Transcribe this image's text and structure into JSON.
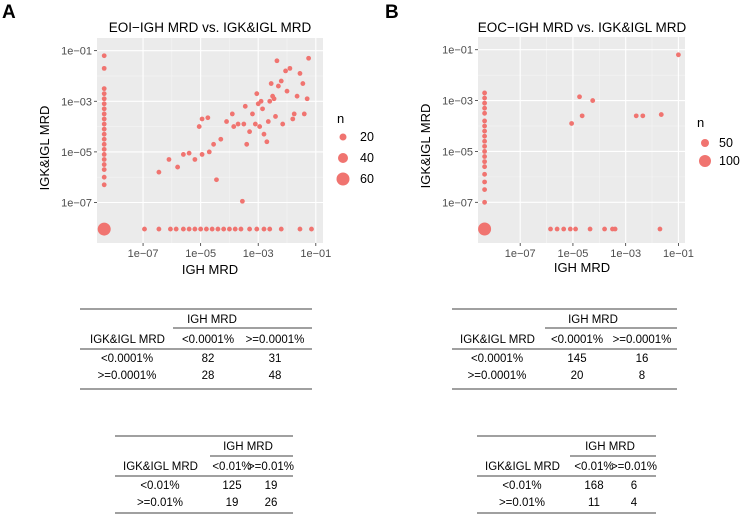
{
  "panels": {
    "a": {
      "letter": "A",
      "title": "EOI−IGH MRD vs. IGK&IGL MRD"
    },
    "b": {
      "letter": "B",
      "title": "EOC−IGH MRD vs. IGK&IGL MRD"
    }
  },
  "chart_data": [
    {
      "type": "scatter",
      "title": "EOI−IGH MRD vs. IGK&IGL MRD",
      "xlabel": "IGH MRD",
      "ylabel": "IGK&IGL MRD",
      "scale": "log10",
      "xlim": [
        -8.6,
        -0.75
      ],
      "ylim": [
        -8.6,
        -0.5
      ],
      "x_ticks": [
        -7,
        -5,
        -3,
        -1
      ],
      "x_tick_labels": [
        "1e−07",
        "1e−05",
        "1e−03",
        "1e−01"
      ],
      "y_ticks": [
        -7,
        -5,
        -3,
        -1
      ],
      "y_tick_labels": [
        "1e−07",
        "1e−05",
        "1e−03",
        "1e−01"
      ],
      "legend": {
        "title": "n",
        "labels": [
          "20",
          "40",
          "60"
        ],
        "values": [
          20,
          40,
          60
        ],
        "position": "right"
      },
      "cluster": {
        "log_x": -8.35,
        "log_y": -8.05,
        "n": 82
      },
      "points_log10": [
        [
          -8.35,
          -1.2
        ],
        [
          -8.35,
          -1.7
        ],
        [
          -8.35,
          -2.5
        ],
        [
          -8.35,
          -2.7
        ],
        [
          -8.35,
          -2.9
        ],
        [
          -8.35,
          -3.1
        ],
        [
          -8.35,
          -3.3
        ],
        [
          -8.35,
          -3.5
        ],
        [
          -8.35,
          -3.7
        ],
        [
          -8.35,
          -3.9
        ],
        [
          -8.35,
          -4.1
        ],
        [
          -8.35,
          -4.3
        ],
        [
          -8.35,
          -4.5
        ],
        [
          -8.35,
          -4.7
        ],
        [
          -8.35,
          -4.9
        ],
        [
          -8.35,
          -5.1
        ],
        [
          -8.35,
          -5.3
        ],
        [
          -8.35,
          -5.5
        ],
        [
          -8.35,
          -5.7
        ],
        [
          -8.35,
          -6.0
        ],
        [
          -8.35,
          -6.3
        ],
        [
          -6.95,
          -8.05
        ],
        [
          -6.45,
          -8.05
        ],
        [
          -6.05,
          -8.05
        ],
        [
          -5.85,
          -8.05
        ],
        [
          -5.6,
          -8.05
        ],
        [
          -5.4,
          -8.05
        ],
        [
          -5.2,
          -8.05
        ],
        [
          -5.0,
          -8.05
        ],
        [
          -4.8,
          -8.05
        ],
        [
          -4.6,
          -8.05
        ],
        [
          -4.4,
          -8.05
        ],
        [
          -4.2,
          -8.05
        ],
        [
          -4.0,
          -8.05
        ],
        [
          -3.8,
          -8.05
        ],
        [
          -3.6,
          -8.05
        ],
        [
          -3.3,
          -8.05
        ],
        [
          -3.05,
          -8.05
        ],
        [
          -2.8,
          -8.05
        ],
        [
          -2.6,
          -8.05
        ],
        [
          -2.2,
          -8.05
        ],
        [
          -1.55,
          -8.05
        ],
        [
          -1.15,
          -8.05
        ],
        [
          -6.45,
          -5.8
        ],
        [
          -6.1,
          -5.3
        ],
        [
          -5.8,
          -5.6
        ],
        [
          -5.6,
          -5.1
        ],
        [
          -5.4,
          -5.05
        ],
        [
          -5.2,
          -5.3
        ],
        [
          -5.05,
          -4.0
        ],
        [
          -4.95,
          -3.7
        ],
        [
          -4.95,
          -5.1
        ],
        [
          -4.75,
          -3.65
        ],
        [
          -4.7,
          -5.0
        ],
        [
          -4.55,
          -4.7
        ],
        [
          -4.45,
          -6.1
        ],
        [
          -4.3,
          -4.5
        ],
        [
          -4.1,
          -3.8
        ],
        [
          -3.9,
          -3.5
        ],
        [
          -3.85,
          -4.0
        ],
        [
          -3.7,
          -3.9
        ],
        [
          -3.5,
          -3.9
        ],
        [
          -3.45,
          -3.2
        ],
        [
          -3.4,
          -4.7
        ],
        [
          -3.3,
          -4.2
        ],
        [
          -3.2,
          -3.5
        ],
        [
          -3.1,
          -3.9
        ],
        [
          -3.05,
          -2.7
        ],
        [
          -3.0,
          -3.1
        ],
        [
          -2.95,
          -4.0
        ],
        [
          -2.9,
          -3.0
        ],
        [
          -2.85,
          -3.3
        ],
        [
          -2.8,
          -4.3
        ],
        [
          -2.7,
          -4.6
        ],
        [
          -2.65,
          -3.8
        ],
        [
          -2.6,
          -3.0
        ],
        [
          -2.55,
          -2.3
        ],
        [
          -2.5,
          -2.8
        ],
        [
          -2.45,
          -2.9
        ],
        [
          -2.4,
          -3.6
        ],
        [
          -2.35,
          -1.4
        ],
        [
          -2.3,
          -2.4
        ],
        [
          -2.2,
          -2.2
        ],
        [
          -2.15,
          -3.9
        ],
        [
          -2.05,
          -1.8
        ],
        [
          -2.0,
          -2.6
        ],
        [
          -1.9,
          -1.7
        ],
        [
          -1.8,
          -3.7
        ],
        [
          -1.75,
          -3.5
        ],
        [
          -1.65,
          -2.8
        ],
        [
          -1.55,
          -1.9
        ],
        [
          -1.45,
          -2.3
        ],
        [
          -1.4,
          -3.5
        ],
        [
          -1.3,
          -2.9
        ],
        [
          -1.25,
          -1.3
        ],
        [
          -3.55,
          -6.95
        ]
      ]
    },
    {
      "type": "scatter",
      "title": "EOC−IGH MRD vs. IGK&IGL MRD",
      "xlabel": "IGH MRD",
      "ylabel": "IGK&IGL MRD",
      "scale": "log10",
      "xlim": [
        -8.6,
        -0.75
      ],
      "ylim": [
        -8.6,
        -0.5
      ],
      "x_ticks": [
        -7,
        -5,
        -3,
        -1
      ],
      "x_tick_labels": [
        "1e−07",
        "1e−05",
        "1e−03",
        "1e−01"
      ],
      "y_ticks": [
        -7,
        -5,
        -3,
        -1
      ],
      "y_tick_labels": [
        "1e−07",
        "1e−05",
        "1e−03",
        "1e−01"
      ],
      "legend": {
        "title": "n",
        "labels": [
          "50",
          "100"
        ],
        "values": [
          50,
          100
        ],
        "position": "right"
      },
      "cluster": {
        "log_x": -8.35,
        "log_y": -8.05,
        "n": 145
      },
      "points_log10": [
        [
          -8.35,
          -2.7
        ],
        [
          -8.35,
          -2.9
        ],
        [
          -8.35,
          -3.1
        ],
        [
          -8.35,
          -3.3
        ],
        [
          -8.35,
          -3.5
        ],
        [
          -8.35,
          -3.8
        ],
        [
          -8.35,
          -4.0
        ],
        [
          -8.35,
          -4.2
        ],
        [
          -8.35,
          -4.4
        ],
        [
          -8.35,
          -4.6
        ],
        [
          -8.35,
          -4.8
        ],
        [
          -8.35,
          -5.0
        ],
        [
          -8.35,
          -5.2
        ],
        [
          -8.35,
          -5.4
        ],
        [
          -8.35,
          -5.6
        ],
        [
          -8.35,
          -5.9
        ],
        [
          -8.35,
          -6.2
        ],
        [
          -8.35,
          -6.5
        ],
        [
          -8.35,
          -7.0
        ],
        [
          -5.85,
          -8.05
        ],
        [
          -5.6,
          -8.05
        ],
        [
          -5.35,
          -8.05
        ],
        [
          -5.1,
          -8.05
        ],
        [
          -4.9,
          -8.05
        ],
        [
          -4.35,
          -8.05
        ],
        [
          -3.8,
          -8.05
        ],
        [
          -3.5,
          -8.05
        ],
        [
          -3.4,
          -8.05
        ],
        [
          -1.7,
          -8.05
        ],
        [
          -5.05,
          -3.9
        ],
        [
          -4.75,
          -2.85
        ],
        [
          -4.65,
          -3.6
        ],
        [
          -4.25,
          -3.0
        ],
        [
          -2.6,
          -3.6
        ],
        [
          -2.35,
          -3.6
        ],
        [
          -1.65,
          -3.55
        ],
        [
          -1.0,
          -1.2
        ]
      ]
    }
  ],
  "tables": {
    "a1": {
      "col_group": "IGH MRD",
      "row_header": "IGK&IGL MRD",
      "cols": [
        "<0.0001%",
        ">=0.0001%"
      ],
      "rows": [
        {
          "label": "<0.0001%",
          "values": [
            "82",
            "31"
          ]
        },
        {
          "label": ">=0.0001%",
          "values": [
            "28",
            "48"
          ]
        }
      ]
    },
    "a2": {
      "col_group": "IGH MRD",
      "row_header": "IGK&IGL MRD",
      "cols": [
        "<0.01%",
        ">=0.01%"
      ],
      "rows": [
        {
          "label": "<0.01%",
          "values": [
            "125",
            "19"
          ]
        },
        {
          "label": ">=0.01%",
          "values": [
            "19",
            "26"
          ]
        }
      ]
    },
    "b1": {
      "col_group": "IGH MRD",
      "row_header": "IGK&IGL MRD",
      "cols": [
        "<0.0001%",
        ">=0.0001%"
      ],
      "rows": [
        {
          "label": "<0.0001%",
          "values": [
            "145",
            "16"
          ]
        },
        {
          "label": ">=0.0001%",
          "values": [
            "20",
            "8"
          ]
        }
      ]
    },
    "b2": {
      "col_group": "IGH MRD",
      "row_header": "IGK&IGL MRD",
      "cols": [
        "<0.01%",
        ">=0.01%"
      ],
      "rows": [
        {
          "label": "<0.01%",
          "values": [
            "168",
            "6"
          ]
        },
        {
          "label": ">=0.01%",
          "values": [
            "11",
            "4"
          ]
        }
      ]
    }
  },
  "colors": {
    "point": "#F07470",
    "panel_bg": "#EBEBEB",
    "grid_major": "#FFFFFF",
    "grid_minor": "#F5F5F5"
  }
}
